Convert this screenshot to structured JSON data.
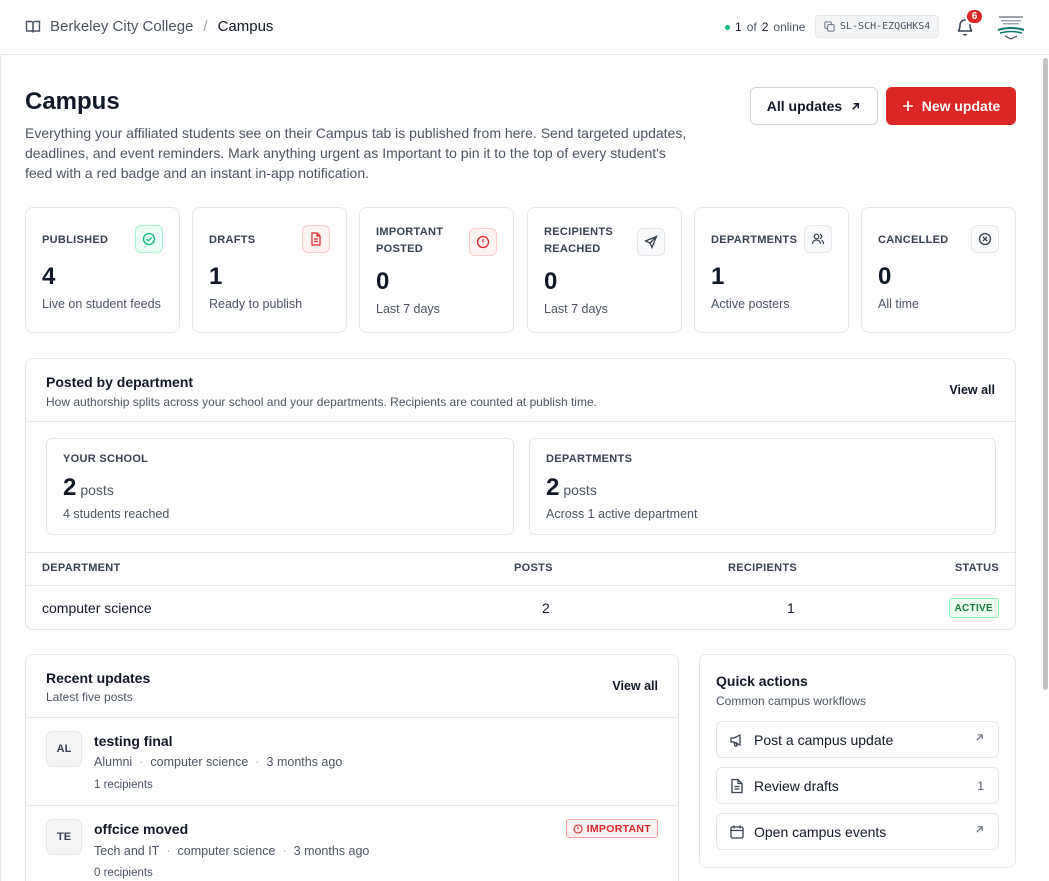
{
  "topbar": {
    "org": "Berkeley City College",
    "separator": "/",
    "page": "Campus",
    "online_count": "1",
    "online_of": "of",
    "online_total": "2",
    "online_label": "online",
    "school_code": "SL-SCH-EZQGHKS4",
    "notification_count": "6",
    "logo_alt": "Berkeley City College"
  },
  "header": {
    "title": "Campus",
    "description": "Everything your affiliated students see on their Campus tab is published from here. Send targeted updates, deadlines, and event reminders. Mark anything urgent as Important to pin it to the top of every student's feed with a red badge and an instant in-app notification.",
    "all_updates_label": "All updates",
    "new_update_label": "New update"
  },
  "stats": [
    {
      "label": "PUBLISHED",
      "value": "4",
      "sub": "Live on student feeds",
      "icon": "check-circle-icon",
      "color": "#10b981"
    },
    {
      "label": "DRAFTS",
      "value": "1",
      "sub": "Ready to publish",
      "icon": "document-icon",
      "color": "#dc2626"
    },
    {
      "label": "IMPORTANT POSTED",
      "value": "0",
      "sub": "Last 7 days",
      "icon": "alert-circle-icon",
      "color": "#dc2626"
    },
    {
      "label": "RECIPIENTS REACHED",
      "value": "0",
      "sub": "Last 7 days",
      "icon": "send-icon",
      "color": "#374151"
    },
    {
      "label": "DEPARTMENTS",
      "value": "1",
      "sub": "Active posters",
      "icon": "users-icon",
      "color": "#374151"
    },
    {
      "label": "CANCELLED",
      "value": "0",
      "sub": "All time",
      "icon": "x-circle-icon",
      "color": "#374151"
    }
  ],
  "department_card": {
    "title": "Posted by department",
    "subtitle": "How authorship splits across your school and your departments. Recipients are counted at publish time.",
    "view_all": "View all",
    "your_school": {
      "label": "YOUR SCHOOL",
      "value": "2",
      "unit": "posts",
      "sub": "4 students reached"
    },
    "departments": {
      "label": "DEPARTMENTS",
      "value": "2",
      "unit": "posts",
      "sub": "Across 1 active department"
    },
    "columns": [
      "DEPARTMENT",
      "POSTS",
      "RECIPIENTS",
      "STATUS"
    ],
    "rows": [
      {
        "department": "computer science",
        "posts": "2",
        "recipients": "1",
        "status": "ACTIVE"
      }
    ]
  },
  "recent_updates": {
    "title": "Recent updates",
    "subtitle": "Latest five posts",
    "view_all": "View all",
    "items": [
      {
        "initials": "AL",
        "title": "testing final",
        "audience": "Alumni",
        "department": "computer science",
        "time": "3 months ago",
        "recipients": "1 recipients",
        "badge": ""
      },
      {
        "initials": "TE",
        "title": "offcice moved",
        "audience": "Tech and IT",
        "department": "computer science",
        "time": "3 months ago",
        "recipients": "0 recipients",
        "badge": "IMPORTANT"
      }
    ]
  },
  "quick_actions": {
    "title": "Quick actions",
    "subtitle": "Common campus workflows",
    "items": [
      {
        "label": "Post a campus update",
        "icon": "megaphone-icon",
        "right": ""
      },
      {
        "label": "Review drafts",
        "icon": "document-icon",
        "right": "1"
      },
      {
        "label": "Open campus events",
        "icon": "calendar-icon",
        "right": ""
      }
    ]
  }
}
